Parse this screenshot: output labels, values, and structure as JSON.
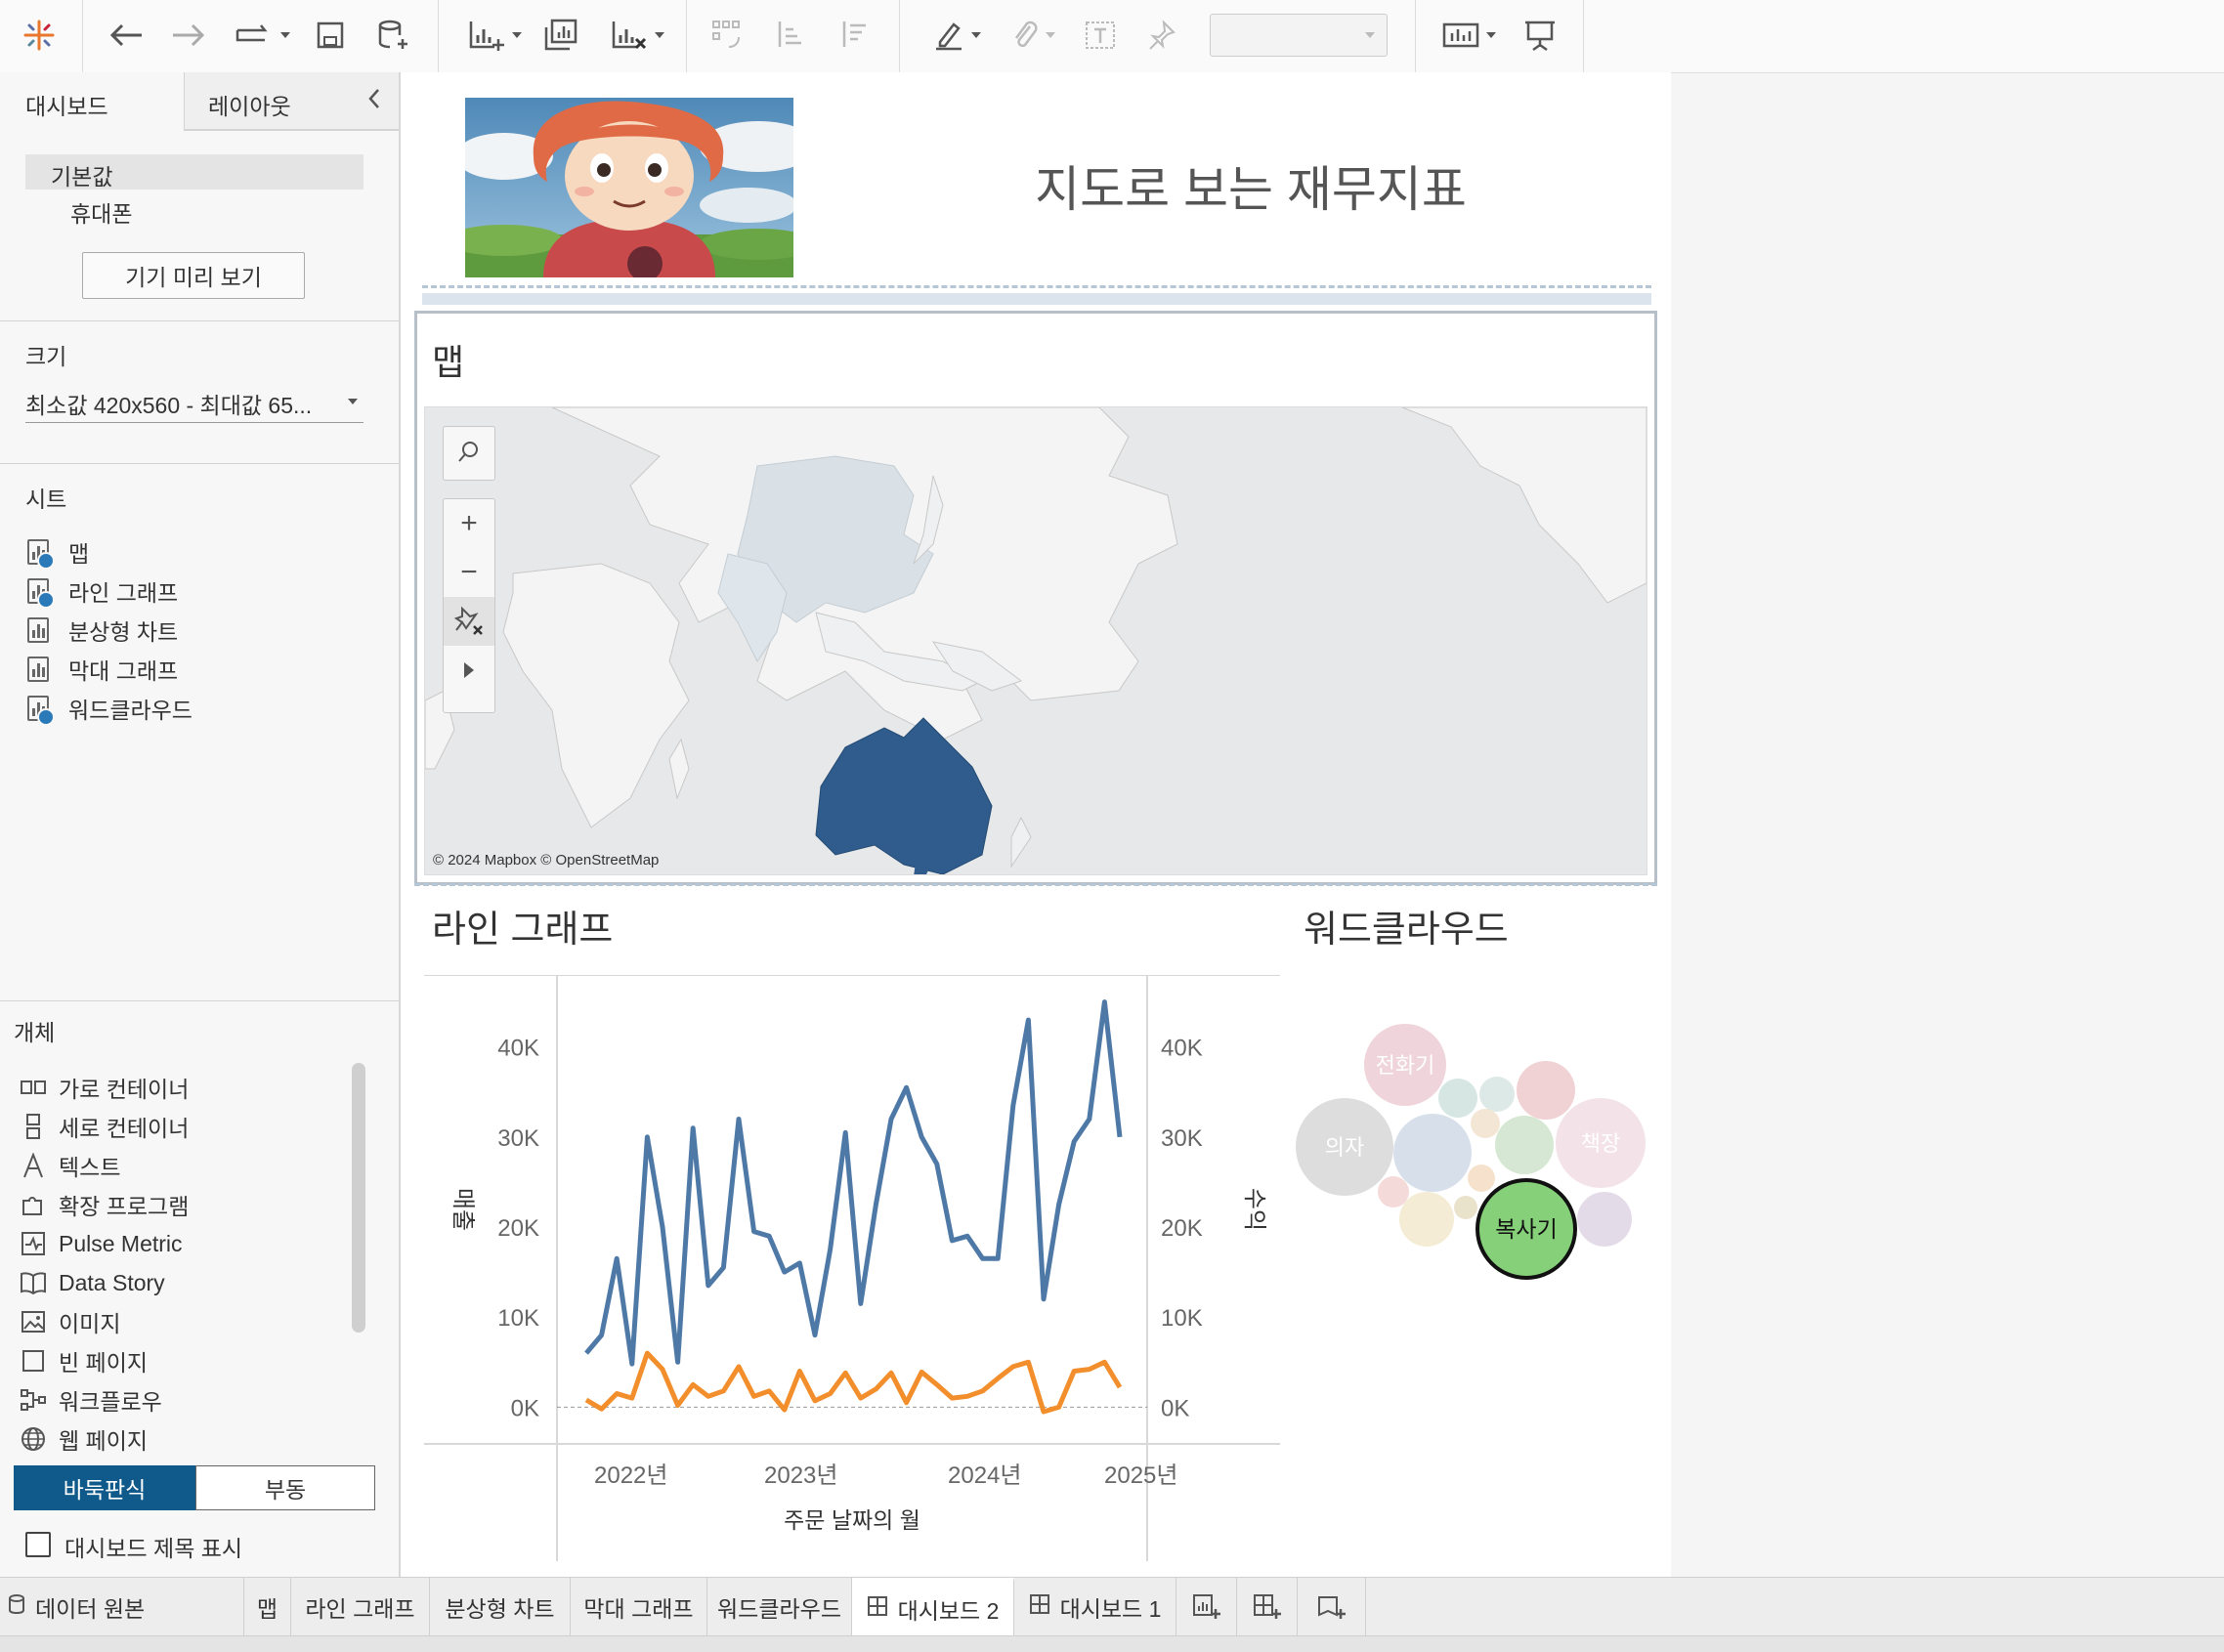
{
  "left_pane": {
    "tabs": [
      "대시보드",
      "레이아웃"
    ],
    "device_default": "기본값",
    "device_phone": "휴대폰",
    "preview_button": "기기 미리 보기",
    "size_title": "크기",
    "size_value": "최소값 420x560 - 최대값 65...",
    "sheets_title": "시트",
    "sheets": [
      {
        "label": "맵",
        "used": true
      },
      {
        "label": "라인 그래프",
        "used": true
      },
      {
        "label": "분상형 차트",
        "used": false
      },
      {
        "label": "막대 그래프",
        "used": false
      },
      {
        "label": "워드클라우드",
        "used": true
      }
    ],
    "objects_title": "개체",
    "objects": [
      {
        "label": "가로 컨테이너",
        "icon": "horizontal-container-icon"
      },
      {
        "label": "세로 컨테이너",
        "icon": "vertical-container-icon"
      },
      {
        "label": "텍스트",
        "icon": "text-icon"
      },
      {
        "label": "확장 프로그램",
        "icon": "extension-icon"
      },
      {
        "label": "Pulse Metric",
        "icon": "pulse-metric-icon"
      },
      {
        "label": "Data Story",
        "icon": "data-story-icon"
      },
      {
        "label": "이미지",
        "icon": "image-icon"
      },
      {
        "label": "빈 페이지",
        "icon": "blank-icon"
      },
      {
        "label": "워크플로우",
        "icon": "workflow-icon"
      },
      {
        "label": "웹 페이지",
        "icon": "web-page-icon"
      }
    ],
    "tiled": "바둑판식",
    "floating": "부동",
    "show_title": "대시보드 제목 표시"
  },
  "dashboard": {
    "title": "지도로 보는 재무지표",
    "map_title": "맵",
    "map_credit": "© 2024 Mapbox © OpenStreetMap",
    "line_title": "라인 그래프",
    "wordcloud_title": "워드클라우드"
  },
  "chart_data": {
    "type": "line",
    "title": "라인 그래프",
    "xlabel": "주문 날짜의 월",
    "ylabel_left": "매출",
    "ylabel_right": "수익",
    "x_ticks": [
      "2022년",
      "2023년",
      "2024년",
      "2025년"
    ],
    "y_ticks": [
      "0K",
      "10K",
      "20K",
      "30K",
      "40K"
    ],
    "ylim": [
      -3000,
      48000
    ],
    "series": [
      {
        "name": "매출",
        "color": "#4e79a7",
        "values": [
          6000,
          8000,
          16500,
          4800,
          30000,
          20000,
          5000,
          31000,
          13500,
          15500,
          32000,
          19500,
          19000,
          15000,
          16000,
          8000,
          17500,
          30500,
          11500,
          22500,
          32000,
          35500,
          30000,
          27000,
          18500,
          19000,
          16500,
          16500,
          33500,
          43000,
          12000,
          22500,
          29500,
          32000,
          45000,
          30000
        ]
      },
      {
        "name": "수익",
        "color": "#f28e2b",
        "values": [
          800,
          -200,
          1500,
          1000,
          6000,
          4200,
          200,
          2500,
          1200,
          1800,
          4500,
          1200,
          1800,
          -300,
          4000,
          700,
          1500,
          3800,
          1000,
          2000,
          3800,
          500,
          3900,
          2500,
          1000,
          1200,
          1800,
          3200,
          4500,
          5000,
          -500,
          0,
          4000,
          4200,
          5000,
          2200
        ]
      }
    ],
    "grid": false
  },
  "wordcloud": {
    "words": [
      "전화기",
      "의자",
      "책장",
      "복사기"
    ],
    "selected": "복사기",
    "selected_color": "#86d07a"
  },
  "tabs": [
    "데이터 원본",
    "맵",
    "라인 그래프",
    "분상형 차트",
    "막대 그래프",
    "워드클라우드",
    "대시보드 2",
    "대시보드 1"
  ],
  "active_tab": "대시보드 2"
}
